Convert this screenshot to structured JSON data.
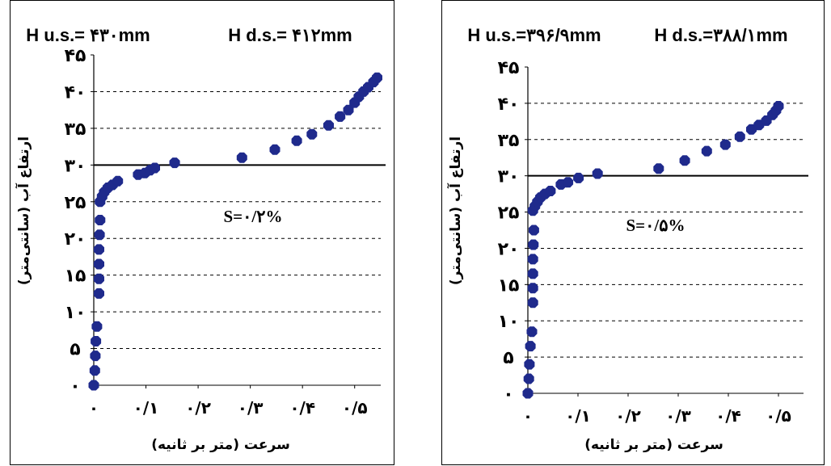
{
  "chart_data": [
    {
      "type": "scatter",
      "title_left": "H u.s.= ۴۳۰mm",
      "title_right": "H d.s.= ۴۱۲mm",
      "xlabel": "سرعت (متر بر ثانیه)",
      "ylabel": "ارتفاع آب (سانتی‌متر)",
      "annotation": "S=۰/۲%",
      "xlim": [
        0,
        0.55
      ],
      "ylim": [
        0,
        45
      ],
      "xticks": [
        0,
        0.1,
        0.2,
        0.3,
        0.4,
        0.5
      ],
      "xtick_labels": [
        "۰",
        "۰/۱",
        "۰/۲",
        "۰/۳",
        "۰/۴",
        "۰/۵"
      ],
      "yticks": [
        0,
        5,
        10,
        15,
        20,
        25,
        30,
        35,
        40,
        45
      ],
      "ytick_labels": [
        "۰",
        "۵",
        "۱۰",
        "۱۵",
        "۲۰",
        "۲۵",
        "۳۰",
        "۳۵",
        "۴۰",
        "۴۵"
      ],
      "grid": "horizontal-dashed",
      "reference_line_y": 30,
      "marker_color": "#1f2a8c",
      "points": [
        [
          0.0,
          0.0
        ],
        [
          0.002,
          2.0
        ],
        [
          0.003,
          4.0
        ],
        [
          0.004,
          6.0
        ],
        [
          0.006,
          8.0
        ],
        [
          0.01,
          12.5
        ],
        [
          0.01,
          14.5
        ],
        [
          0.01,
          16.5
        ],
        [
          0.01,
          18.5
        ],
        [
          0.011,
          20.5
        ],
        [
          0.012,
          22.5
        ],
        [
          0.012,
          25.0
        ],
        [
          0.016,
          25.7
        ],
        [
          0.02,
          26.3
        ],
        [
          0.027,
          26.9
        ],
        [
          0.036,
          27.3
        ],
        [
          0.046,
          27.8
        ],
        [
          0.085,
          28.7
        ],
        [
          0.098,
          28.9
        ],
        [
          0.108,
          29.3
        ],
        [
          0.117,
          29.6
        ],
        [
          0.155,
          30.3
        ],
        [
          0.284,
          31.0
        ],
        [
          0.347,
          32.1
        ],
        [
          0.389,
          33.3
        ],
        [
          0.418,
          34.2
        ],
        [
          0.45,
          35.4
        ],
        [
          0.472,
          36.6
        ],
        [
          0.488,
          37.5
        ],
        [
          0.5,
          38.5
        ],
        [
          0.508,
          39.3
        ],
        [
          0.517,
          40.0
        ],
        [
          0.526,
          40.6
        ],
        [
          0.536,
          41.3
        ],
        [
          0.543,
          41.9
        ]
      ]
    },
    {
      "type": "scatter",
      "title_left": "H u.s.=۳۹۶/۹mm",
      "title_right": "H d.s.=۳۸۸/۱mm",
      "xlabel": "سرعت (متر بر ثانیه)",
      "ylabel": "ارتفاع آب (سانتی‌متر)",
      "annotation": "S=۰/۵%",
      "xlim": [
        0,
        0.55
      ],
      "ylim": [
        0,
        45
      ],
      "xticks": [
        0,
        0.1,
        0.2,
        0.3,
        0.4,
        0.5
      ],
      "xtick_labels": [
        "۰",
        "۰/۱",
        "۰/۲",
        "۰/۳",
        "۰/۴",
        "۰/۵"
      ],
      "yticks": [
        0,
        5,
        10,
        15,
        20,
        25,
        30,
        35,
        40,
        45
      ],
      "ytick_labels": [
        "۰",
        "۵",
        "۱۰",
        "۱۵",
        "۲۰",
        "۲۵",
        "۳۰",
        "۳۵",
        "۴۰",
        "۴۵"
      ],
      "grid": "horizontal-dashed",
      "reference_line_y": 30,
      "marker_color": "#1f2a8c",
      "points": [
        [
          0.0,
          0.0
        ],
        [
          0.002,
          2.0
        ],
        [
          0.003,
          4.0
        ],
        [
          0.005,
          6.5
        ],
        [
          0.008,
          8.5
        ],
        [
          0.01,
          12.5
        ],
        [
          0.01,
          14.5
        ],
        [
          0.01,
          16.5
        ],
        [
          0.01,
          18.5
        ],
        [
          0.011,
          20.5
        ],
        [
          0.012,
          22.5
        ],
        [
          0.01,
          25.2
        ],
        [
          0.014,
          25.8
        ],
        [
          0.019,
          26.4
        ],
        [
          0.025,
          27.0
        ],
        [
          0.034,
          27.5
        ],
        [
          0.045,
          27.9
        ],
        [
          0.066,
          28.8
        ],
        [
          0.08,
          29.1
        ],
        [
          0.101,
          29.7
        ],
        [
          0.139,
          30.3
        ],
        [
          0.261,
          31.0
        ],
        [
          0.313,
          32.1
        ],
        [
          0.357,
          33.4
        ],
        [
          0.394,
          34.3
        ],
        [
          0.423,
          35.4
        ],
        [
          0.446,
          36.4
        ],
        [
          0.461,
          37.0
        ],
        [
          0.476,
          37.6
        ],
        [
          0.488,
          38.4
        ],
        [
          0.495,
          39.0
        ],
        [
          0.5,
          39.6
        ]
      ]
    }
  ]
}
